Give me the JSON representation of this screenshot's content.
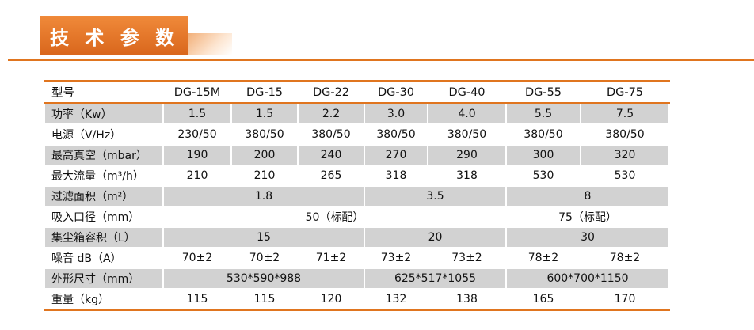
{
  "header": {
    "title": "技 术 参 数"
  },
  "colors": {
    "accent": "#e0751f",
    "row_shade": "#d2d2d2"
  },
  "table": {
    "header_label": "型号",
    "models": [
      "DG-15M",
      "DG-15",
      "DG-22",
      "DG-30",
      "DG-40",
      "DG-55",
      "DG-75"
    ],
    "rows": [
      {
        "label": "功率（Kw）",
        "cells": [
          {
            "v": "1.5",
            "span": 1
          },
          {
            "v": "1.5",
            "span": 1
          },
          {
            "v": "2.2",
            "span": 1
          },
          {
            "v": "3.0",
            "span": 1
          },
          {
            "v": "4.0",
            "span": 1
          },
          {
            "v": "5.5",
            "span": 1
          },
          {
            "v": "7.5",
            "span": 1
          }
        ]
      },
      {
        "label": "电源（V/Hz）",
        "cells": [
          {
            "v": "230/50",
            "span": 1
          },
          {
            "v": "380/50",
            "span": 1
          },
          {
            "v": "380/50",
            "span": 1
          },
          {
            "v": "380/50",
            "span": 1
          },
          {
            "v": "380/50",
            "span": 1
          },
          {
            "v": "380/50",
            "span": 1
          },
          {
            "v": "380/50",
            "span": 1
          }
        ]
      },
      {
        "label": "最高真空（mbar）",
        "cells": [
          {
            "v": "190",
            "span": 1
          },
          {
            "v": "200",
            "span": 1
          },
          {
            "v": "240",
            "span": 1
          },
          {
            "v": "270",
            "span": 1
          },
          {
            "v": "290",
            "span": 1
          },
          {
            "v": "300",
            "span": 1
          },
          {
            "v": "320",
            "span": 1
          }
        ]
      },
      {
        "label": "最大流量（m³/h）",
        "cells": [
          {
            "v": "210",
            "span": 1
          },
          {
            "v": "210",
            "span": 1
          },
          {
            "v": "265",
            "span": 1
          },
          {
            "v": "318",
            "span": 1
          },
          {
            "v": "318",
            "span": 1
          },
          {
            "v": "530",
            "span": 1
          },
          {
            "v": "530",
            "span": 1
          }
        ]
      },
      {
        "label": "过滤面积（m²）",
        "cells": [
          {
            "v": "1.8",
            "span": 3
          },
          {
            "v": "3.5",
            "span": 2
          },
          {
            "v": "8",
            "span": 2
          }
        ]
      },
      {
        "label": "吸入口径（mm）",
        "cells": [
          {
            "v": "50（标配）",
            "span": 5
          },
          {
            "v": "75（标配）",
            "span": 2
          }
        ]
      },
      {
        "label": "集尘箱容积（L）",
        "cells": [
          {
            "v": "15",
            "span": 3
          },
          {
            "v": "20",
            "span": 2
          },
          {
            "v": "30",
            "span": 2
          }
        ]
      },
      {
        "label": "噪音  dB（A）",
        "cells": [
          {
            "v": "70±2",
            "span": 1
          },
          {
            "v": "70±2",
            "span": 1
          },
          {
            "v": "71±2",
            "span": 1
          },
          {
            "v": "73±2",
            "span": 1
          },
          {
            "v": "73±2",
            "span": 1
          },
          {
            "v": "78±2",
            "span": 1
          },
          {
            "v": "78±2",
            "span": 1
          }
        ]
      },
      {
        "label": "外形尺寸（mm）",
        "cells": [
          {
            "v": "530*590*988",
            "span": 3
          },
          {
            "v": "625*517*1055",
            "span": 2
          },
          {
            "v": "600*700*1150",
            "span": 2
          }
        ]
      },
      {
        "label": "重量（kg）",
        "cells": [
          {
            "v": "115",
            "span": 1
          },
          {
            "v": "115",
            "span": 1
          },
          {
            "v": "120",
            "span": 1
          },
          {
            "v": "132",
            "span": 1
          },
          {
            "v": "138",
            "span": 1
          },
          {
            "v": "165",
            "span": 1
          },
          {
            "v": "170",
            "span": 1
          }
        ]
      }
    ]
  }
}
